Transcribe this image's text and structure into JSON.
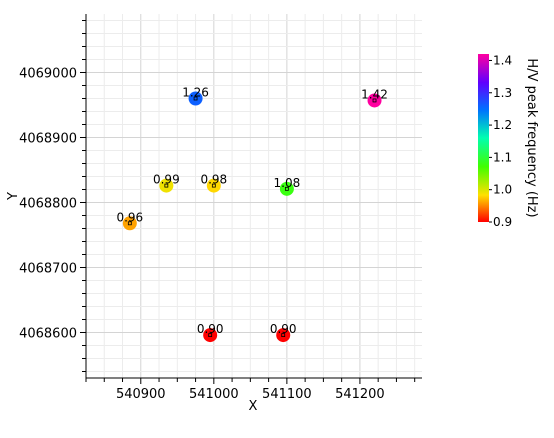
{
  "chart_data": {
    "type": "scatter",
    "xlabel": "X",
    "ylabel": "Y",
    "xlim": [
      540825,
      541285
    ],
    "ylim": [
      4068530,
      4069090
    ],
    "grid": true,
    "x_tick_labels": [
      "540900",
      "541000",
      "541100",
      "541200"
    ],
    "x_ticks": [
      540900,
      541000,
      541100,
      541200
    ],
    "y_tick_labels": [
      "4068600",
      "4068700",
      "4068800",
      "4068900",
      "4069000"
    ],
    "y_ticks": [
      4068600,
      4068700,
      4068800,
      4068900,
      4069000
    ],
    "colorbar": {
      "label": "H/V peak frequency (Hz)",
      "range": [
        0.9,
        1.42
      ],
      "tick_labels": [
        "0.9",
        "1.0",
        "1.1",
        "1.2",
        "1.3",
        "1.4"
      ],
      "ticks": [
        0.9,
        1.0,
        1.1,
        1.2,
        1.3,
        1.4
      ],
      "colormap": "hsv-reversed",
      "low_color": "#ff0000",
      "high_color": "#ff00a0"
    },
    "points": [
      {
        "x": 540975,
        "y": 4068960,
        "value": 1.26,
        "label": "1.26"
      },
      {
        "x": 541220,
        "y": 4068957,
        "value": 1.42,
        "label": "1.42"
      },
      {
        "x": 540935,
        "y": 4068826,
        "value": 0.99,
        "label": "0.99"
      },
      {
        "x": 541000,
        "y": 4068826,
        "value": 0.98,
        "label": "0.98"
      },
      {
        "x": 541100,
        "y": 4068821,
        "value": 1.08,
        "label": "1.08"
      },
      {
        "x": 540885,
        "y": 4068768,
        "value": 0.96,
        "label": "0.96"
      },
      {
        "x": 540995,
        "y": 4068596,
        "value": 0.9,
        "label": "0.90"
      },
      {
        "x": 541095,
        "y": 4068596,
        "value": 0.9,
        "label": "0.90"
      }
    ]
  }
}
